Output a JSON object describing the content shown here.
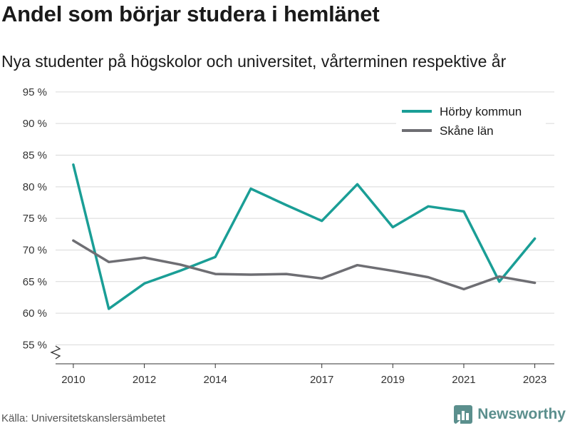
{
  "title": "Andel som börjar studera i hemlänet",
  "subtitle": "Nya studenter på högskolor och universitet, vårterminen respektive år",
  "source": "Källa: Universitetskanslersämbetet",
  "brand": {
    "name": "Newsworthy",
    "icon": "bar-chart-logo-icon",
    "color": "#5b8f8d"
  },
  "chart_data": {
    "type": "line",
    "title": "Andel som börjar studera i hemlänet",
    "subtitle": "Nya studenter på högskolor och universitet, vårterminen respektive år",
    "x": [
      2010,
      2011,
      2012,
      2013,
      2014,
      2015,
      2016,
      2017,
      2018,
      2019,
      2020,
      2021,
      2022,
      2023
    ],
    "xticks": [
      2010,
      2012,
      2014,
      2017,
      2019,
      2021,
      2023
    ],
    "ylim": [
      52,
      96
    ],
    "yticks": [
      55,
      60,
      65,
      70,
      75,
      80,
      85,
      90,
      95
    ],
    "ytick_labels": [
      "55 %",
      "60 %",
      "65 %",
      "70 %",
      "75 %",
      "80 %",
      "85 %",
      "90 %",
      "95 %"
    ],
    "y_axis_break": true,
    "grid": true,
    "legend_position": "top-right",
    "series": [
      {
        "name": "Hörby kommun",
        "color": "#1a9e96",
        "values": [
          83.5,
          60.7,
          64.7,
          66.7,
          68.9,
          79.7,
          77.1,
          74.6,
          80.4,
          73.6,
          76.9,
          76.1,
          65.0,
          71.8
        ]
      },
      {
        "name": "Skåne län",
        "color": "#6e6e73",
        "values": [
          71.5,
          68.1,
          68.8,
          67.7,
          66.2,
          66.1,
          66.2,
          65.5,
          67.6,
          66.7,
          65.7,
          63.8,
          65.8,
          64.8
        ]
      }
    ]
  }
}
